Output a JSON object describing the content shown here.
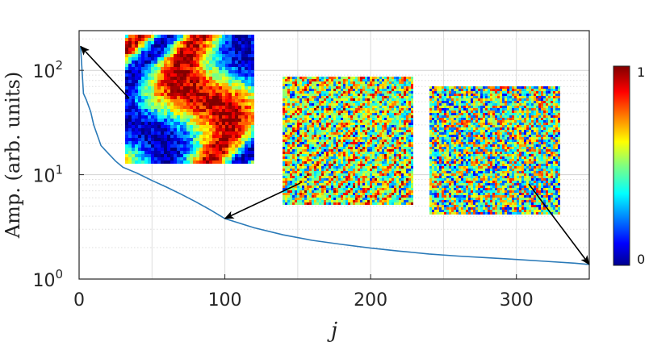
{
  "chart_data": {
    "type": "line",
    "xlabel": "j",
    "ylabel": "Amp. (arb. units)",
    "xlim": [
      0,
      350
    ],
    "ylim": [
      1,
      240
    ],
    "yscale": "log",
    "grid": true,
    "x_ticks": [
      "0",
      "100",
      "200",
      "300"
    ],
    "y_ticks": [
      {
        "base": "10",
        "exp": "0"
      },
      {
        "base": "10",
        "exp": "1"
      },
      {
        "base": "10",
        "exp": "2"
      }
    ],
    "series": [
      {
        "color": "#2a7ab8",
        "x": [
          1,
          3,
          5,
          8,
          10,
          15,
          20,
          25,
          30,
          40,
          50,
          60,
          70,
          80,
          90,
          100,
          120,
          140,
          160,
          180,
          200,
          220,
          240,
          260,
          280,
          300,
          320,
          340,
          350
        ],
        "y": [
          170,
          60,
          52,
          40,
          30,
          19,
          16,
          13.5,
          11.8,
          10.3,
          8.8,
          7.6,
          6.5,
          5.5,
          4.6,
          3.8,
          3.1,
          2.65,
          2.35,
          2.15,
          1.98,
          1.85,
          1.74,
          1.66,
          1.6,
          1.54,
          1.48,
          1.42,
          1.38
        ]
      }
    ],
    "colorbar": {
      "colormap": "jet",
      "range": [
        0,
        1
      ],
      "tick_labels": [
        "0",
        "1"
      ]
    },
    "insets": [
      {
        "name": "mode-pattern-low-j",
        "icon": "broad-fringe-pattern",
        "points_to": {
          "x": 1,
          "y": 170
        }
      },
      {
        "name": "mode-pattern-mid-j",
        "icon": "fine-diagonal-speckle",
        "points_to": {
          "x": 100,
          "y": 3.8
        }
      },
      {
        "name": "mode-pattern-high-j",
        "icon": "random-speckle-noise",
        "points_to": {
          "x": 350,
          "y": 1.38
        }
      }
    ]
  }
}
